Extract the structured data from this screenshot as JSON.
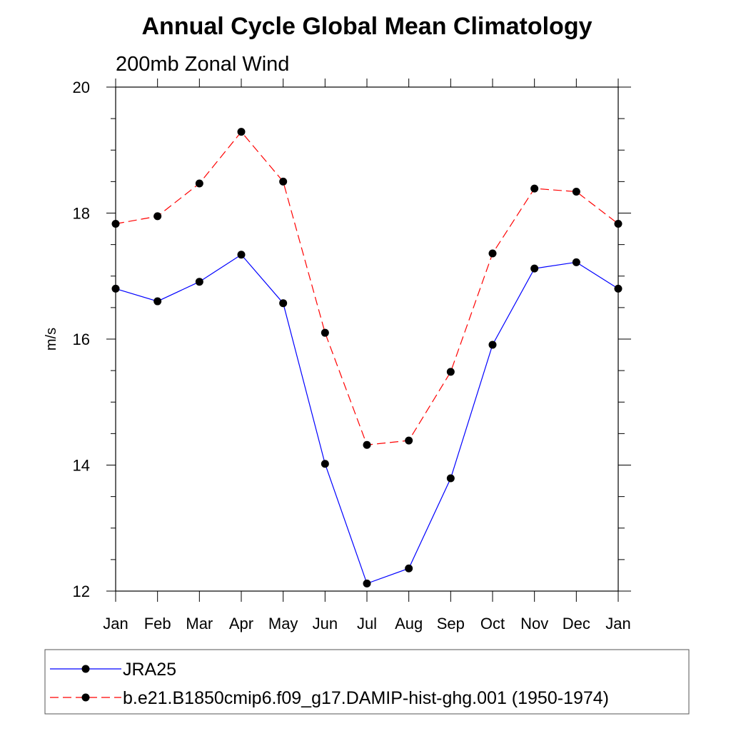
{
  "chart_data": {
    "type": "line",
    "title": "Annual Cycle Global Mean Climatology",
    "subtitle": "200mb Zonal Wind",
    "xlabel": "",
    "ylabel": "m/s",
    "categories": [
      "Jan",
      "Feb",
      "Mar",
      "Apr",
      "May",
      "Jun",
      "Jul",
      "Aug",
      "Sep",
      "Oct",
      "Nov",
      "Dec",
      "Jan"
    ],
    "ylim": [
      12,
      20
    ],
    "yticks": [
      "12",
      "14",
      "16",
      "18",
      "20"
    ],
    "grid": false,
    "legend_placement": "bottom",
    "series": [
      {
        "name": "JRA25",
        "color": "#0000ff",
        "dash": "solid",
        "marker": "filled-circle",
        "values": [
          16.8,
          16.6,
          16.91,
          17.34,
          16.57,
          14.02,
          12.12,
          12.36,
          13.79,
          15.91,
          17.12,
          17.22,
          16.8
        ]
      },
      {
        "name": "b.e21.B1850cmip6.f09_g17.DAMIP-hist-ghg.001 (1950-1974)",
        "color": "#ff0000",
        "dash": "dashed",
        "marker": "filled-circle",
        "values": [
          17.83,
          17.95,
          18.47,
          19.29,
          18.5,
          16.1,
          14.32,
          14.39,
          15.48,
          17.36,
          18.39,
          18.34,
          17.83
        ]
      }
    ]
  }
}
